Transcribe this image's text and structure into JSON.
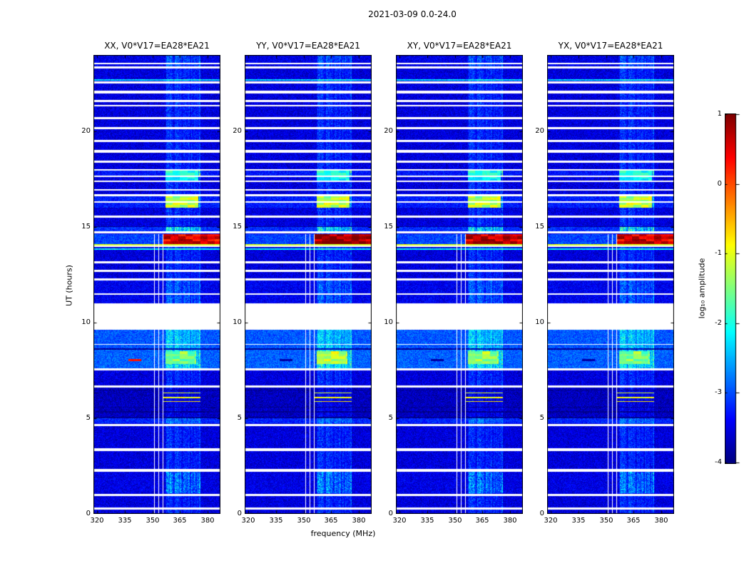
{
  "chart_data": {
    "type": "heatmap",
    "title": "2021-03-09 0.0-24.0",
    "xlabel": "frequency (MHz)",
    "ylabel": "UT (hours)",
    "xlim": [
      318,
      387
    ],
    "ylim": [
      0,
      24
    ],
    "x_ticks": [
      "320",
      "335",
      "350",
      "365",
      "380"
    ],
    "y_ticks": [
      "0",
      "5",
      "10",
      "15",
      "20"
    ],
    "grid": false,
    "panels": [
      {
        "id": "XX",
        "title": "XX, V0*V17=EA28*EA21",
        "seed": 11,
        "event_boost": 0.0,
        "dash_level": 0.3
      },
      {
        "id": "YY",
        "title": "YY, V0*V17=EA28*EA21",
        "seed": 22,
        "event_boost": 0.35,
        "dash_level": -3.8
      },
      {
        "id": "XY",
        "title": "XY, V0*V17=EA28*EA21",
        "seed": 33,
        "event_boost": 0.15,
        "dash_level": -3.8
      },
      {
        "id": "YX",
        "title": "YX, V0*V17=EA28*EA21",
        "seed": 44,
        "event_boost": 0.05,
        "dash_level": -3.8
      }
    ],
    "colorbar": {
      "label": "log₁₀ amplitude",
      "ticks": [
        "1",
        "0",
        "-1",
        "-2",
        "-3",
        "-4"
      ],
      "vmin": -4,
      "vmax": 1,
      "colormap": "jet"
    },
    "render": {
      "background_level": -3.55,
      "noise_amp": 0.6,
      "band": {
        "f0": 357,
        "f1": 376,
        "boost": 0.5
      },
      "gaps": [
        [
          0.22,
          0.34
        ],
        [
          0.92,
          1.04
        ],
        [
          2.22,
          2.34
        ],
        [
          3.3,
          3.42
        ],
        [
          4.6,
          4.72
        ],
        [
          6.6,
          6.72
        ],
        [
          7.5,
          7.62
        ],
        [
          8.83,
          8.88
        ],
        [
          9.62,
          11.02
        ],
        [
          11.45,
          11.55
        ],
        [
          12.2,
          12.3
        ],
        [
          12.65,
          12.75
        ],
        [
          13.1,
          13.2
        ],
        [
          13.95,
          14.04
        ],
        [
          14.66,
          14.78
        ],
        [
          15.5,
          15.62
        ],
        [
          16.28,
          16.33
        ],
        [
          16.62,
          16.74
        ],
        [
          16.9,
          16.97
        ],
        [
          17.35,
          17.42
        ],
        [
          17.62,
          17.7
        ],
        [
          17.95,
          18.03
        ],
        [
          18.35,
          18.47
        ],
        [
          18.9,
          19.02
        ],
        [
          19.45,
          19.57
        ],
        [
          20.1,
          20.22
        ],
        [
          20.65,
          20.77
        ],
        [
          21.3,
          21.4
        ],
        [
          21.55,
          21.63
        ],
        [
          22.0,
          22.12
        ],
        [
          22.5,
          22.62
        ],
        [
          23.3,
          23.42
        ],
        [
          23.52,
          23.6
        ]
      ],
      "rows": [
        [
          1.1,
          2.2,
          -3.5,
          1.0
        ],
        [
          4.75,
          5.0,
          -3.2,
          0.5
        ],
        [
          5.0,
          5.08,
          -3.95,
          0.0
        ],
        [
          5.08,
          6.6,
          -3.7,
          0.35
        ],
        [
          5.3,
          5.36,
          -3.95,
          0.0
        ],
        [
          5.55,
          5.6,
          -3.95,
          0.0
        ],
        [
          6.45,
          6.5,
          -3.95,
          0.0
        ],
        [
          7.62,
          8.6,
          -2.9,
          1.0
        ],
        [
          8.6,
          8.66,
          -3.9,
          0.2
        ],
        [
          8.66,
          9.62,
          -2.95,
          0.8
        ],
        [
          11.02,
          12.2,
          -3.45,
          0.7
        ],
        [
          13.8,
          13.9,
          -2.15,
          0.3
        ],
        [
          14.04,
          14.12,
          -1.05,
          0.0
        ],
        [
          14.12,
          14.62,
          -3.05,
          0.4
        ],
        [
          14.78,
          15.0,
          -3.15,
          1.3
        ],
        [
          15.0,
          15.06,
          -3.9,
          0.0
        ],
        [
          16.0,
          16.6,
          -3.25,
          0.8
        ],
        [
          17.7,
          17.95,
          -3.3,
          1.5
        ],
        [
          22.65,
          22.72,
          -2.3,
          0.4
        ],
        [
          23.42,
          24.0,
          -3.5,
          0.7
        ]
      ],
      "events": [
        {
          "t0": 14.12,
          "t1": 14.62,
          "f0": 356,
          "f1": 387,
          "level": 0.45,
          "spread": 0.5,
          "scale_with_panel": true
        },
        {
          "t0": 16.02,
          "t1": 16.6,
          "f0": 357,
          "f1": 375,
          "level": -1.35,
          "spread": 0.5,
          "scale_with_panel": false
        },
        {
          "t0": 7.85,
          "t1": 8.5,
          "f0": 357,
          "f1": 374,
          "level": -1.55,
          "spread": 0.4,
          "scale_with_panel": true
        },
        {
          "t0": 17.42,
          "t1": 17.62,
          "f0": 357,
          "f1": 375,
          "level": -2.1,
          "spread": 0.3,
          "scale_with_panel": false
        },
        {
          "t0": 17.7,
          "t1": 17.95,
          "f0": 357,
          "f1": 375,
          "level": -2.0,
          "spread": 0.3,
          "scale_with_panel": false
        },
        {
          "t0": 5.85,
          "t1": 5.91,
          "f0": 356,
          "f1": 376,
          "level": -0.8,
          "spread": 0.2,
          "scale_with_panel": false
        },
        {
          "t0": 6.05,
          "t1": 6.11,
          "f0": 356,
          "f1": 376,
          "level": -0.95,
          "spread": 0.2,
          "scale_with_panel": false
        },
        {
          "t0": 6.29,
          "t1": 6.35,
          "f0": 356,
          "f1": 376,
          "level": -1.1,
          "spread": 0.2,
          "scale_with_panel": false
        }
      ],
      "vlines": {
        "freqs": [
          351.0,
          353.5,
          355.8
        ],
        "width": 0.45,
        "t_ranges": [
          [
            0,
            9.62
          ],
          [
            11.02,
            14.62
          ]
        ]
      },
      "dash": {
        "t0": 8.0,
        "t1": 8.09,
        "f0": 337,
        "f1": 344
      }
    }
  }
}
